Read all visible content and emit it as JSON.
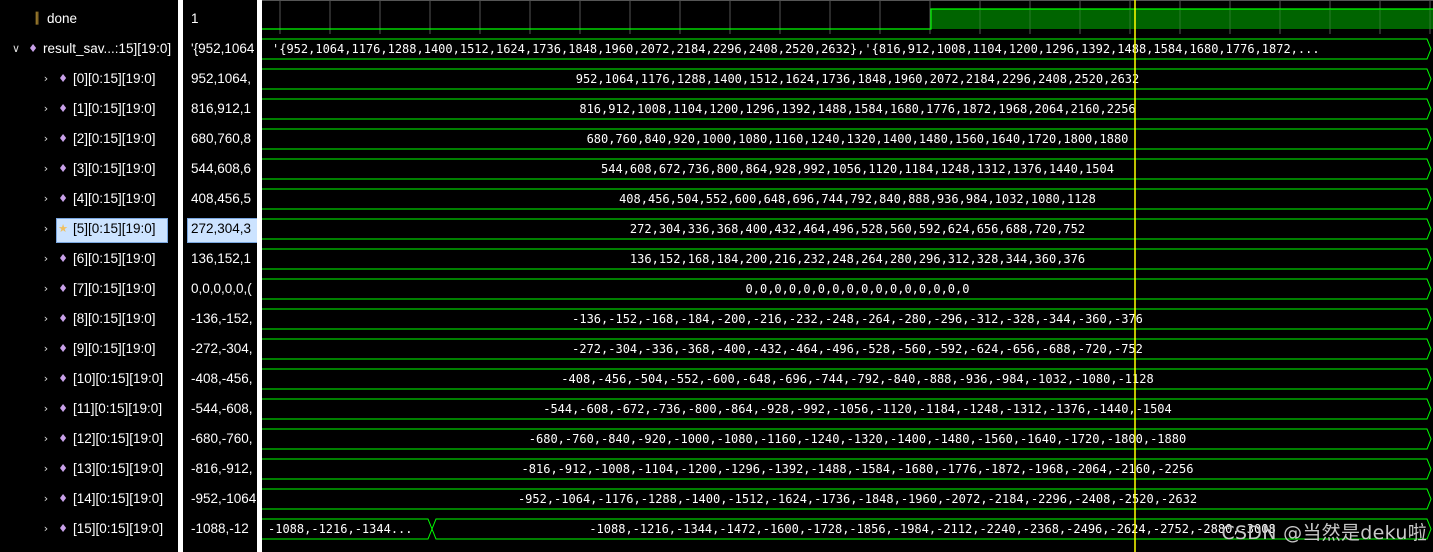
{
  "signals": [
    {
      "name": "done",
      "value": "1",
      "expand": "",
      "icon": "bit-signal-icon",
      "indent": 1
    },
    {
      "name": "result_sav...:15][19:0]",
      "value": "'{952,1064",
      "expand": "v",
      "icon": "array-signal-icon",
      "indent": 0
    },
    {
      "name": "[0][0:15][19:0]",
      "value": "952,1064,",
      "expand": ">",
      "icon": "array-signal-icon",
      "indent": 1
    },
    {
      "name": "[1][0:15][19:0]",
      "value": "816,912,1",
      "expand": ">",
      "icon": "array-signal-icon",
      "indent": 1
    },
    {
      "name": "[2][0:15][19:0]",
      "value": "680,760,8",
      "expand": ">",
      "icon": "array-signal-icon",
      "indent": 1
    },
    {
      "name": "[3][0:15][19:0]",
      "value": "544,608,6",
      "expand": ">",
      "icon": "array-signal-icon",
      "indent": 1
    },
    {
      "name": "[4][0:15][19:0]",
      "value": "408,456,5",
      "expand": ">",
      "icon": "array-signal-icon",
      "indent": 1
    },
    {
      "name": "[5][0:15][19:0]",
      "value": "272,304,3",
      "expand": ">",
      "icon": "array-signal-selected-icon",
      "indent": 1,
      "selected": true
    },
    {
      "name": "[6][0:15][19:0]",
      "value": "136,152,1",
      "expand": ">",
      "icon": "array-signal-icon",
      "indent": 1
    },
    {
      "name": "[7][0:15][19:0]",
      "value": "0,0,0,0,0,(",
      "expand": ">",
      "icon": "array-signal-icon",
      "indent": 1
    },
    {
      "name": "[8][0:15][19:0]",
      "value": "-136,-152,",
      "expand": ">",
      "icon": "array-signal-icon",
      "indent": 1
    },
    {
      "name": "[9][0:15][19:0]",
      "value": "-272,-304,",
      "expand": ">",
      "icon": "array-signal-icon",
      "indent": 1
    },
    {
      "name": "[10][0:15][19:0]",
      "value": "-408,-456,",
      "expand": ">",
      "icon": "array-signal-icon",
      "indent": 1
    },
    {
      "name": "[11][0:15][19:0]",
      "value": "-544,-608,",
      "expand": ">",
      "icon": "array-signal-icon",
      "indent": 1
    },
    {
      "name": "[12][0:15][19:0]",
      "value": "-680,-760,",
      "expand": ">",
      "icon": "array-signal-icon",
      "indent": 1
    },
    {
      "name": "[13][0:15][19:0]",
      "value": "-816,-912,",
      "expand": ">",
      "icon": "array-signal-icon",
      "indent": 1
    },
    {
      "name": "[14][0:15][19:0]",
      "value": "-952,-1064",
      "expand": ">",
      "icon": "array-signal-icon",
      "indent": 1
    },
    {
      "name": "[15][0:15][19:0]",
      "value": "-1088,-12",
      "expand": ">",
      "icon": "array-signal-icon",
      "indent": 1
    }
  ],
  "waves": [
    {
      "type": "bit",
      "transition_fraction": 0.571
    },
    {
      "type": "bus",
      "segments": [
        {
          "text": "'{952,1064,1176,1288,1400,1512,1624,1736,1848,1960,2072,2184,2296,2408,2520,2632},'{816,912,1008,1104,1200,1296,1392,1488,1584,1680,1776,1872,..."
        }
      ]
    },
    {
      "type": "bus",
      "segments": [
        {
          "text": "952,1064,1176,1288,1400,1512,1624,1736,1848,1960,2072,2184,2296,2408,2520,2632"
        }
      ]
    },
    {
      "type": "bus",
      "segments": [
        {
          "text": "816,912,1008,1104,1200,1296,1392,1488,1584,1680,1776,1872,1968,2064,2160,2256"
        }
      ]
    },
    {
      "type": "bus",
      "segments": [
        {
          "text": "680,760,840,920,1000,1080,1160,1240,1320,1400,1480,1560,1640,1720,1800,1880"
        }
      ]
    },
    {
      "type": "bus",
      "segments": [
        {
          "text": "544,608,672,736,800,864,928,992,1056,1120,1184,1248,1312,1376,1440,1504"
        }
      ]
    },
    {
      "type": "bus",
      "segments": [
        {
          "text": "408,456,504,552,600,648,696,744,792,840,888,936,984,1032,1080,1128"
        }
      ]
    },
    {
      "type": "bus",
      "segments": [
        {
          "text": "272,304,336,368,400,432,464,496,528,560,592,624,656,688,720,752"
        }
      ]
    },
    {
      "type": "bus",
      "segments": [
        {
          "text": "136,152,168,184,200,216,232,248,264,280,296,312,328,344,360,376"
        }
      ]
    },
    {
      "type": "bus",
      "segments": [
        {
          "text": "0,0,0,0,0,0,0,0,0,0,0,0,0,0,0,0"
        }
      ]
    },
    {
      "type": "bus",
      "segments": [
        {
          "text": "-136,-152,-168,-184,-200,-216,-232,-248,-264,-280,-296,-312,-328,-344,-360,-376"
        }
      ]
    },
    {
      "type": "bus",
      "segments": [
        {
          "text": "-272,-304,-336,-368,-400,-432,-464,-496,-528,-560,-592,-624,-656,-688,-720,-752"
        }
      ]
    },
    {
      "type": "bus",
      "segments": [
        {
          "text": "-408,-456,-504,-552,-600,-648,-696,-744,-792,-840,-888,-936,-984,-1032,-1080,-1128"
        }
      ]
    },
    {
      "type": "bus",
      "segments": [
        {
          "text": "-544,-608,-672,-736,-800,-864,-928,-992,-1056,-1120,-1184,-1248,-1312,-1376,-1440,-1504"
        }
      ]
    },
    {
      "type": "bus",
      "segments": [
        {
          "text": "-680,-760,-840,-920,-1000,-1080,-1160,-1240,-1320,-1400,-1480,-1560,-1640,-1720,-1800,-1880"
        }
      ]
    },
    {
      "type": "bus",
      "segments": [
        {
          "text": "-816,-912,-1008,-1104,-1200,-1296,-1392,-1488,-1584,-1680,-1776,-1872,-1968,-2064,-2160,-2256"
        }
      ]
    },
    {
      "type": "bus",
      "segments": [
        {
          "text": "-952,-1064,-1176,-1288,-1400,-1512,-1624,-1736,-1848,-1960,-2072,-2184,-2296,-2408,-2520,-2632"
        }
      ]
    },
    {
      "type": "bus",
      "segments": [
        {
          "text": "-1088,-1216,-1344..."
        },
        {
          "text": "-1088,-1216,-1344,-1472,-1600,-1728,-1856,-1984,-2112,-2240,-2368,-2496,-2624,-2752,-2880,-3008"
        }
      ]
    }
  ],
  "watermark": "CSDN @当然是deku啦",
  "colors": {
    "wave": "#00ff00",
    "bit_high_fill": "#006400",
    "cursor": "#ffff00",
    "grid": "#3a3a3a",
    "selection": "#cce3ff"
  }
}
